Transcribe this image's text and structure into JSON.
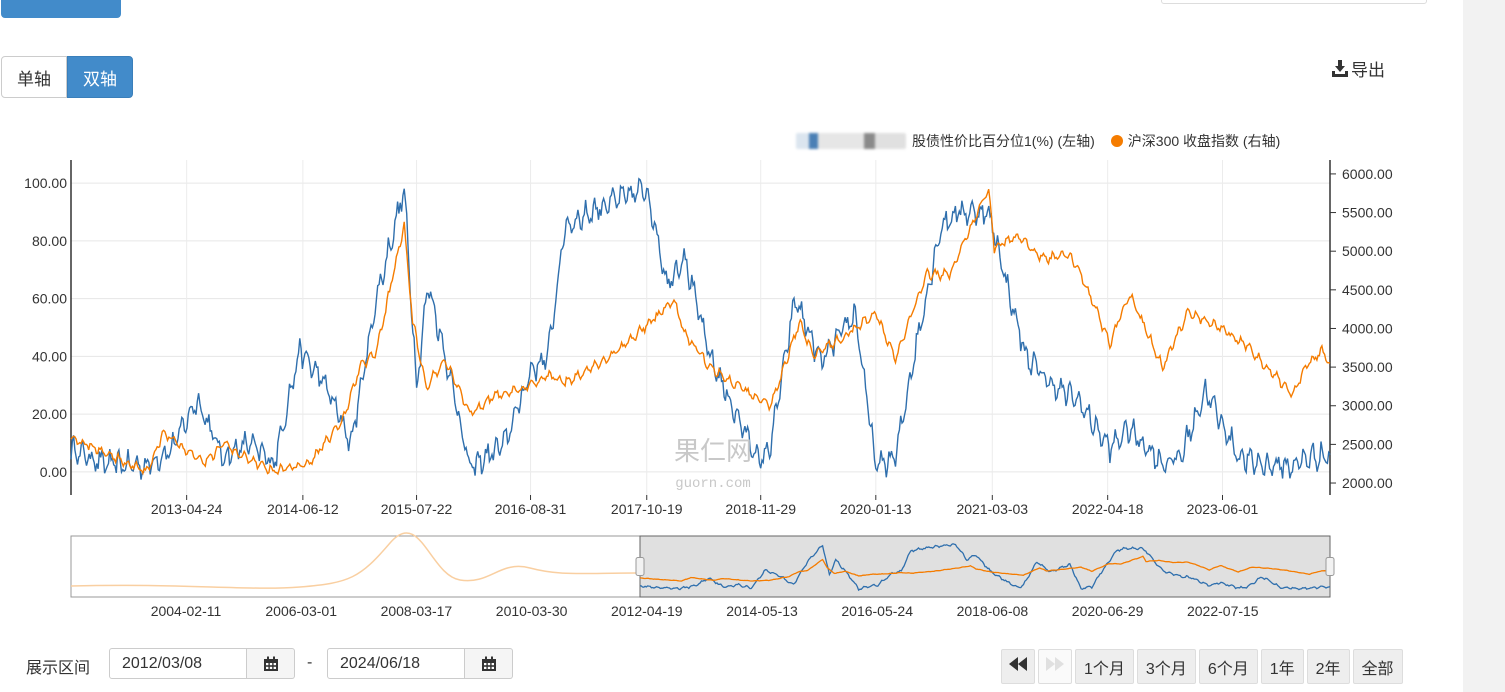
{
  "axis_toggle": {
    "single": "单轴",
    "dual": "双轴",
    "active": "dual"
  },
  "export_label": "导出",
  "legend": {
    "series1": "股债性价比百分位1(%) (左轴)",
    "series2": "沪深300 收盘指数 (右轴)"
  },
  "watermark": {
    "cn": "果仁网",
    "en": "guorn.com"
  },
  "colors": {
    "series1": "#2f6fad",
    "series2": "#f57c00",
    "series2_faded": "#f9cfa1",
    "button_active": "#428bca"
  },
  "range": {
    "label": "展示区间",
    "start": "2012/03/08",
    "end": "2024/06/18",
    "separator": "-"
  },
  "zoom_buttons": [
    "1个月",
    "3个月",
    "6个月",
    "1年",
    "2年",
    "全部"
  ],
  "icons": {
    "export": "download-icon",
    "calendar": "calendar-icon",
    "first": "fast-backward-icon",
    "last": "fast-forward-icon"
  },
  "chart_data": {
    "type": "line",
    "y_left": {
      "ylim": [
        -8,
        108
      ],
      "ticks": [
        "0.00",
        "20.00",
        "40.00",
        "60.00",
        "80.00",
        "100.00"
      ]
    },
    "y_right": {
      "ylim": [
        1845,
        6180
      ],
      "ticks": [
        "2000.00",
        "2500.00",
        "3000.00",
        "3500.00",
        "4000.00",
        "4500.00",
        "5000.00",
        "5500.00",
        "6000.00"
      ]
    },
    "x_ticks": [
      "2013-04-24",
      "2014-06-12",
      "2015-07-22",
      "2016-08-31",
      "2017-10-19",
      "2018-11-29",
      "2020-01-13",
      "2021-03-03",
      "2022-04-18",
      "2023-06-01"
    ],
    "x_range": [
      "2012-03-08",
      "2024-06-18"
    ],
    "series": [
      {
        "name": "股债性价比百分位1(%) (左轴)",
        "axis": "left",
        "x": [
          "2012-03-08",
          "2012-07-01",
          "2012-12-01",
          "2013-03-01",
          "2013-06-01",
          "2013-09-01",
          "2013-12-01",
          "2014-03-01",
          "2014-06-01",
          "2014-09-01",
          "2014-12-01",
          "2015-03-01",
          "2015-06-08",
          "2015-07-22",
          "2015-09-01",
          "2015-12-01",
          "2016-01-28",
          "2016-06-01",
          "2016-09-01",
          "2016-11-01",
          "2017-01-01",
          "2017-06-01",
          "2017-10-19",
          "2018-01-01",
          "2018-03-01",
          "2018-06-01",
          "2018-09-01",
          "2018-11-29",
          "2019-01-04",
          "2019-04-01",
          "2019-07-01",
          "2019-11-01",
          "2020-01-13",
          "2020-03-23",
          "2020-06-01",
          "2020-09-01",
          "2020-11-01",
          "2021-02-10",
          "2021-03-08",
          "2021-05-01",
          "2021-07-01",
          "2021-10-01",
          "2022-01-01",
          "2022-04-26",
          "2022-07-01",
          "2022-10-31",
          "2023-01-01",
          "2023-04-01",
          "2023-08-01",
          "2023-10-01",
          "2024-01-01",
          "2024-02-05",
          "2024-04-01",
          "2024-06-18"
        ],
        "values": [
          8,
          3,
          2,
          8,
          25,
          5,
          10,
          3,
          42,
          30,
          10,
          60,
          98,
          30,
          65,
          28,
          1,
          10,
          35,
          40,
          85,
          93,
          98,
          65,
          75,
          40,
          20,
          3,
          10,
          60,
          38,
          55,
          2,
          5,
          42,
          85,
          90,
          90,
          84,
          62,
          40,
          30,
          25,
          8,
          15,
          3,
          5,
          28,
          5,
          3,
          2,
          2,
          5,
          6
        ]
      },
      {
        "name": "沪深300 收盘指数 (右轴)",
        "axis": "right",
        "x": [
          "2012-03-08",
          "2012-05-01",
          "2012-09-01",
          "2012-12-03",
          "2013-02-01",
          "2013-06-25",
          "2013-09-01",
          "2014-01-01",
          "2014-03-01",
          "2014-07-01",
          "2014-11-01",
          "2015-01-01",
          "2015-03-01",
          "2015-06-08",
          "2015-07-08",
          "2015-08-26",
          "2015-11-01",
          "2016-01-28",
          "2016-05-01",
          "2016-08-01",
          "2016-11-01",
          "2017-01-01",
          "2017-06-01",
          "2017-11-22",
          "2018-01-24",
          "2018-03-01",
          "2018-06-01",
          "2018-10-01",
          "2019-01-03",
          "2019-04-19",
          "2019-06-01",
          "2019-09-01",
          "2020-01-13",
          "2020-03-23",
          "2020-07-10",
          "2020-10-01",
          "2021-02-18",
          "2021-03-10",
          "2021-06-01",
          "2021-09-01",
          "2021-12-01",
          "2022-01-01",
          "2022-04-26",
          "2022-07-05",
          "2022-10-31",
          "2023-01-28",
          "2023-06-01",
          "2023-09-01",
          "2024-02-05",
          "2024-04-01",
          "2024-05-20",
          "2024-06-18"
        ],
        "values": [
          2600,
          2500,
          2300,
          2150,
          2650,
          2250,
          2500,
          2250,
          2150,
          2250,
          2800,
          3500,
          3700,
          5350,
          4100,
          3250,
          3600,
          2900,
          3150,
          3200,
          3400,
          3300,
          3600,
          4150,
          4380,
          3950,
          3500,
          3200,
          3000,
          4100,
          3650,
          3850,
          4200,
          3600,
          4700,
          4700,
          5800,
          5050,
          5200,
          4900,
          4950,
          4800,
          3800,
          4450,
          3500,
          4200,
          4000,
          3750,
          3150,
          3550,
          3700,
          3550
        ]
      }
    ]
  }
}
